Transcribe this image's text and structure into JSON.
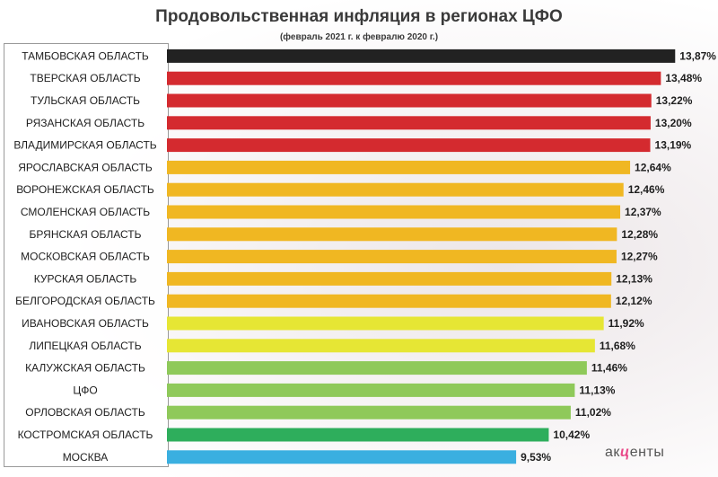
{
  "title": "Продовольственная инфляция в регионах ЦФО",
  "subtitle": "(февраль 2021 г. к февралю 2020 г.)",
  "logo": {
    "pre": "ак",
    "mid": "ц",
    "post": "енты"
  },
  "chart_data": {
    "type": "bar",
    "orientation": "horizontal",
    "title": "Продовольственная инфляция в регионах ЦФО",
    "subtitle": "(февраль 2021 г. к февралю 2020 г.)",
    "unit": "%",
    "xlim": [
      0,
      14.5
    ],
    "grid": false,
    "categories": [
      "ТАМБОВСКАЯ ОБЛАСТЬ",
      "ТВЕРСКАЯ ОБЛАСТЬ",
      "ТУЛЬСКАЯ ОБЛАСТЬ",
      "РЯЗАНСКАЯ ОБЛАСТЬ",
      "ВЛАДИМИРСКАЯ ОБЛАСТЬ",
      "ЯРОСЛАВСКАЯ ОБЛАСТЬ",
      "ВОРОНЕЖСКАЯ ОБЛАСТЬ",
      "СМОЛЕНСКАЯ ОБЛАСТЬ",
      "БРЯНСКАЯ ОБЛАСТЬ",
      "МОСКОВСКАЯ ОБЛАСТЬ",
      "КУРСКАЯ ОБЛАСТЬ",
      "БЕЛГОРОДСКАЯ ОБЛАСТЬ",
      "ИВАНОВСКАЯ ОБЛАСТЬ",
      "ЛИПЕЦКАЯ ОБЛАСТЬ",
      "КАЛУЖСКАЯ ОБЛАСТЬ",
      "ЦФО",
      "ОРЛОВСКАЯ ОБЛАСТЬ",
      "КОСТРОМСКАЯ ОБЛАСТЬ",
      "МОСКВА"
    ],
    "values": [
      13.87,
      13.48,
      13.22,
      13.2,
      13.19,
      12.64,
      12.46,
      12.37,
      12.28,
      12.27,
      12.13,
      12.12,
      11.92,
      11.68,
      11.46,
      11.13,
      11.02,
      10.42,
      9.53
    ],
    "value_labels": [
      "13,87%",
      "13,48%",
      "13,22%",
      "13,20%",
      "13,19%",
      "12,64%",
      "12,46%",
      "12,37%",
      "12,28%",
      "12,27%",
      "12,13%",
      "12,12%",
      "11,92%",
      "11,68%",
      "11,46%",
      "11,13%",
      "11,02%",
      "10,42%",
      "9,53%"
    ],
    "colors": [
      "#222222",
      "#d42a2f",
      "#d42a2f",
      "#d42a2f",
      "#d42a2f",
      "#f0b722",
      "#f0b722",
      "#f0b722",
      "#f0b722",
      "#f0b722",
      "#f0b722",
      "#f0b722",
      "#e6e634",
      "#e6e634",
      "#8fc95a",
      "#8fc95a",
      "#8fc95a",
      "#2eae5c",
      "#3aafe0"
    ]
  }
}
